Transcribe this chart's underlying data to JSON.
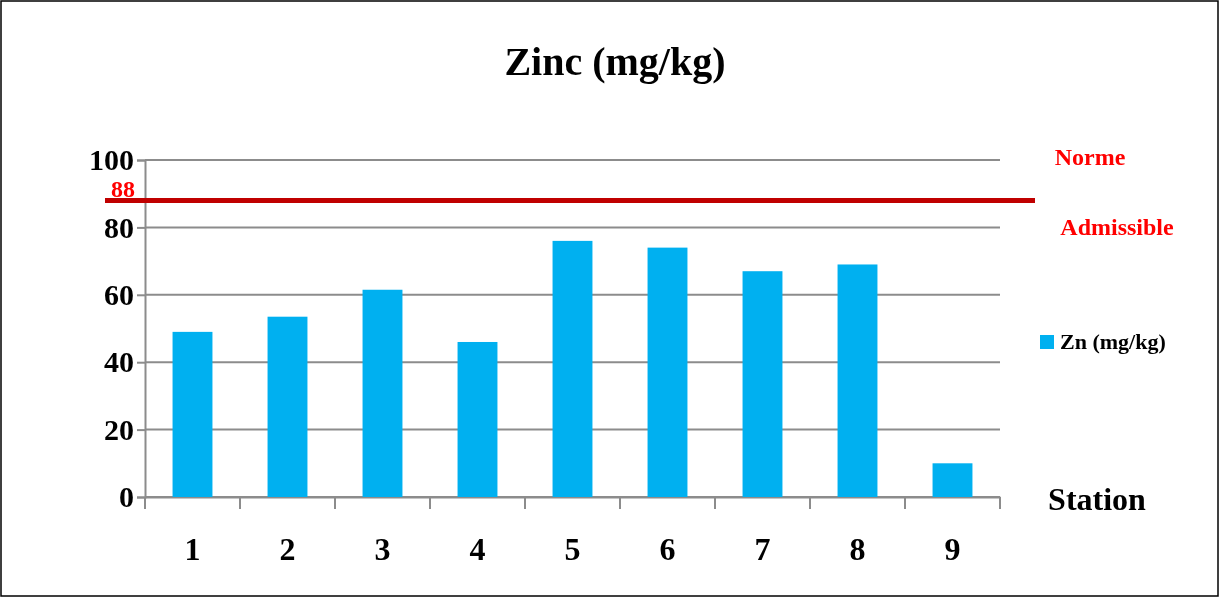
{
  "chart_data": {
    "type": "bar",
    "title": "Zinc (mg/kg)",
    "xlabel": "Station",
    "categories": [
      "1",
      "2",
      "3",
      "4",
      "5",
      "6",
      "7",
      "8",
      "9"
    ],
    "series": [
      {
        "name": "Zn (mg/kg)",
        "color": "#00b0f0",
        "values": [
          49,
          53.5,
          61.5,
          46,
          76,
          74,
          67,
          69,
          10
        ]
      }
    ],
    "ylim": [
      0,
      100
    ],
    "yticks": [
      0,
      20,
      40,
      60,
      80,
      100
    ],
    "grid": "y",
    "legend": "right",
    "ref_lines": [
      {
        "axis": "y",
        "value": 88,
        "label": "88",
        "color": "#c00000"
      }
    ],
    "annotations": [
      "Norme",
      "Admissible"
    ]
  }
}
